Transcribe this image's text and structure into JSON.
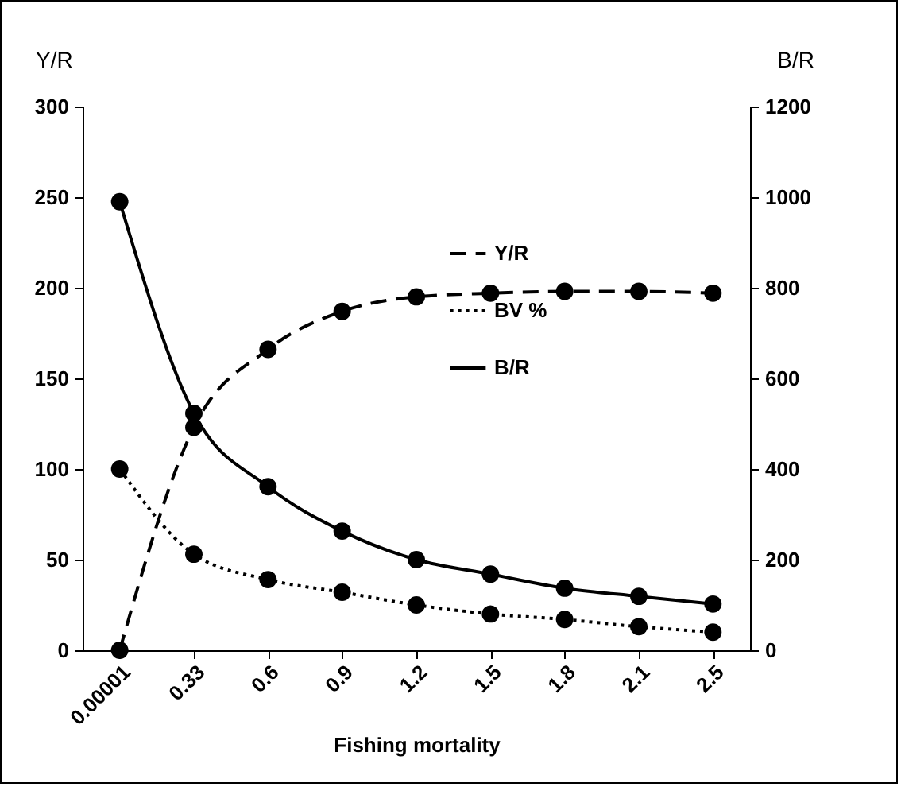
{
  "chart_data": {
    "type": "line",
    "xlabel": "Fishing mortality",
    "ylabel": "Y/R",
    "y2label": "B/R",
    "categories": [
      "0.00001",
      "0.33",
      "0.6",
      "0.9",
      "1.2",
      "1.5",
      "1.8",
      "2.1",
      "2.5"
    ],
    "series": [
      {
        "name": "Y/R",
        "color": "#000000",
        "line_style": "dashed",
        "values": [
          0,
          123,
          166,
          187,
          195,
          197,
          198,
          198,
          197
        ]
      },
      {
        "name": "BV %",
        "color": "#000000",
        "line_style": "dotted",
        "values": [
          100,
          53,
          39,
          32,
          25,
          20,
          17,
          13,
          10
        ]
      },
      {
        "name": "B/R",
        "color": "#000000",
        "line_style": "solid",
        "axis": "y2",
        "values": [
          990,
          523,
          361,
          263,
          200,
          168,
          137,
          119,
          102
        ]
      }
    ],
    "ylim": [
      0,
      300
    ],
    "yticks": [
      0,
      50,
      100,
      150,
      200,
      250,
      300
    ],
    "y2lim": [
      0,
      1200
    ],
    "y2ticks": [
      0,
      200,
      400,
      600,
      800,
      1000,
      1200
    ],
    "marker": "circle",
    "legend": "right",
    "grid": false
  }
}
